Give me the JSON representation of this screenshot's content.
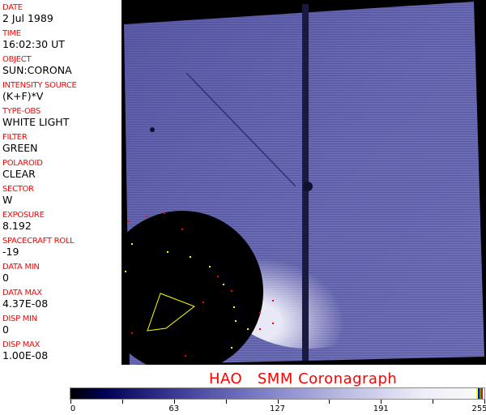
{
  "header": [
    {
      "label": "DATE",
      "value": "2 Jul 1989"
    },
    {
      "label": "TIME",
      "value": "16:02:30 UT"
    },
    {
      "label": "OBJECT",
      "value": "SUN:CORONA"
    },
    {
      "label": "INTENSITY SOURCE",
      "value": "(K+F)*V"
    },
    {
      "label": "TYPE-OBS",
      "value": "WHITE LIGHT"
    },
    {
      "label": "FILTER",
      "value": "GREEN"
    },
    {
      "label": "POLAROID",
      "value": "CLEAR"
    },
    {
      "label": "SECTOR",
      "value": "W"
    },
    {
      "label": "EXPOSURE",
      "value": "8.192"
    },
    {
      "label": "SPACECRAFT ROLL",
      "value": "-19"
    },
    {
      "label": "DATA MIN",
      "value": "0"
    },
    {
      "label": "DATA MAX",
      "value": "4.37E-08"
    },
    {
      "label": "DISP MIN",
      "value": "0"
    },
    {
      "label": "DISP MAX",
      "value": "1.00E-08"
    }
  ],
  "title": "HAO   SMM Coronagraph",
  "colorbar": {
    "ticks": [
      "0",
      "63",
      "127",
      "191",
      "255"
    ],
    "end_colors": [
      "#ffff00",
      "#0000ff",
      "#00c000",
      "#ff0000"
    ]
  }
}
